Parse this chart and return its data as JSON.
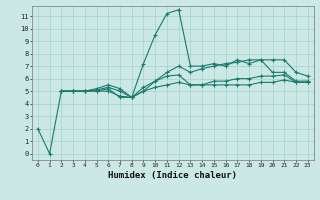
{
  "xlabel": "Humidex (Indice chaleur)",
  "bg_color": "#cce8e4",
  "grid_color": "#aad4d0",
  "line_color": "#1a7a6e",
  "xlim": [
    -0.5,
    23.5
  ],
  "ylim": [
    -0.5,
    11.8
  ],
  "xticks": [
    0,
    1,
    2,
    3,
    4,
    5,
    6,
    7,
    8,
    9,
    10,
    11,
    12,
    13,
    14,
    15,
    16,
    17,
    18,
    19,
    20,
    21,
    22,
    23
  ],
  "yticks": [
    0,
    1,
    2,
    3,
    4,
    5,
    6,
    7,
    8,
    9,
    10,
    11
  ],
  "lines": [
    {
      "x": [
        0,
        1,
        2,
        3,
        4,
        5,
        6,
        7,
        8,
        9,
        10,
        11,
        12,
        13,
        14,
        15,
        16,
        17,
        18,
        19,
        20,
        21,
        22,
        23
      ],
      "y": [
        2,
        0,
        5,
        5,
        5,
        5,
        5.2,
        4.5,
        4.5,
        7.2,
        9.5,
        11.2,
        11.5,
        7.0,
        7.0,
        7.2,
        7.0,
        7.5,
        7.2,
        7.5,
        6.5,
        6.5,
        5.8,
        5.8
      ]
    },
    {
      "x": [
        2,
        3,
        4,
        5,
        6,
        7,
        8,
        9,
        10,
        11,
        12,
        13,
        14,
        15,
        16,
        17,
        18,
        19,
        20,
        21,
        22,
        23
      ],
      "y": [
        5,
        5,
        5,
        5.1,
        5.3,
        5.0,
        4.5,
        5.3,
        5.8,
        6.2,
        6.3,
        5.5,
        5.5,
        5.8,
        5.8,
        6.0,
        6.0,
        6.2,
        6.2,
        6.3,
        5.7,
        5.7
      ]
    },
    {
      "x": [
        2,
        3,
        4,
        5,
        6,
        7,
        8,
        9,
        10,
        11,
        12,
        13,
        14,
        15,
        16,
        17,
        18,
        19,
        20,
        21,
        22,
        23
      ],
      "y": [
        5,
        5,
        5,
        5.0,
        5.0,
        4.6,
        4.5,
        5.0,
        5.3,
        5.5,
        5.7,
        5.5,
        5.5,
        5.5,
        5.5,
        5.5,
        5.5,
        5.7,
        5.7,
        5.9,
        5.7,
        5.7
      ]
    },
    {
      "x": [
        2,
        3,
        4,
        5,
        6,
        7,
        8,
        9,
        10,
        11,
        12,
        13,
        14,
        15,
        16,
        17,
        18,
        19,
        20,
        21,
        22,
        23
      ],
      "y": [
        5,
        5,
        5,
        5.2,
        5.5,
        5.2,
        4.5,
        5.0,
        5.8,
        6.5,
        7.0,
        6.5,
        6.8,
        7.0,
        7.2,
        7.3,
        7.5,
        7.5,
        7.5,
        7.5,
        6.5,
        6.2
      ]
    }
  ]
}
